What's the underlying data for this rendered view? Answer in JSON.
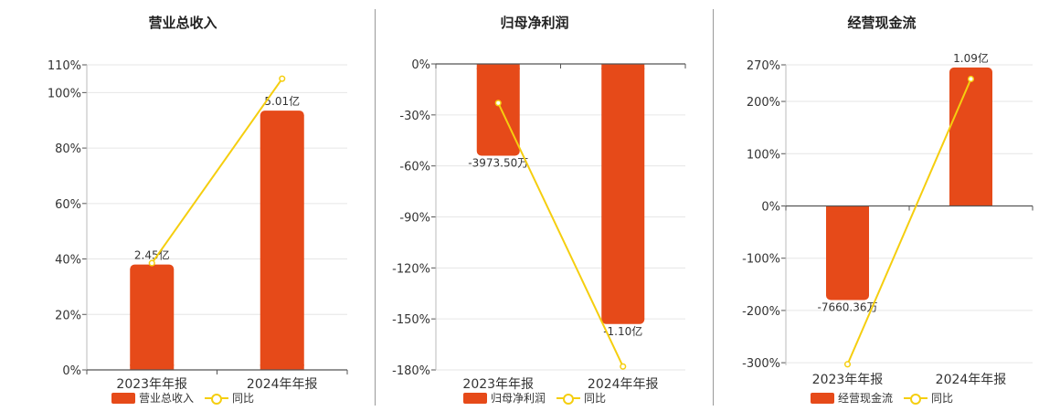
{
  "colors": {
    "bar": "#E64A19",
    "line": "#F5CE0F",
    "grid": "#e6e6e6",
    "axis": "#555555"
  },
  "chart_data": [
    {
      "type": "bar",
      "title": "营业总收入",
      "categories": [
        "2023年年报",
        "2024年年报"
      ],
      "series": [
        {
          "name": "营业总收入",
          "type": "bar",
          "values": [
            38,
            93.5
          ],
          "labels": [
            "2.45亿",
            "5.01亿"
          ]
        },
        {
          "name": "同比",
          "type": "line",
          "values": [
            38.5,
            105
          ]
        }
      ],
      "ylim": [
        0,
        110
      ],
      "yticks": [
        0,
        20,
        40,
        60,
        80,
        100,
        110
      ],
      "ytick_labels": [
        "0%",
        "20%",
        "40%",
        "60%",
        "80%",
        "100%",
        "110%"
      ],
      "grid": true,
      "legend": "bottom"
    },
    {
      "type": "bar",
      "title": "归母净利润",
      "categories": [
        "2023年年报",
        "2024年年报"
      ],
      "series": [
        {
          "name": "归母净利润",
          "type": "bar",
          "values": [
            -54,
            -153
          ],
          "labels": [
            "-3973.50万",
            "-1.10亿"
          ]
        },
        {
          "name": "同比",
          "type": "line",
          "values": [
            -23,
            -178
          ]
        }
      ],
      "ylim": [
        -180,
        0
      ],
      "yticks": [
        0,
        -30,
        -60,
        -90,
        -120,
        -150,
        -180
      ],
      "ytick_labels": [
        "0%",
        "-30%",
        "-60%",
        "-90%",
        "-120%",
        "-150%",
        "-180%"
      ],
      "grid": true,
      "legend": "bottom"
    },
    {
      "type": "bar",
      "title": "经营现金流",
      "categories": [
        "2023年年报",
        "2024年年报"
      ],
      "series": [
        {
          "name": "经营现金流",
          "type": "bar",
          "values": [
            -180,
            265
          ],
          "labels": [
            "-7660.36万",
            "1.09亿"
          ]
        },
        {
          "name": "同比",
          "type": "line",
          "values": [
            -303,
            243
          ]
        }
      ],
      "ylim": [
        -305,
        270
      ],
      "yticks": [
        270,
        200,
        100,
        0,
        -100,
        -200,
        -300
      ],
      "ytick_labels": [
        "270%",
        "200%",
        "100%",
        "0%",
        "-100%",
        "-200%",
        "-300%"
      ],
      "grid": true,
      "legend": "bottom"
    }
  ]
}
